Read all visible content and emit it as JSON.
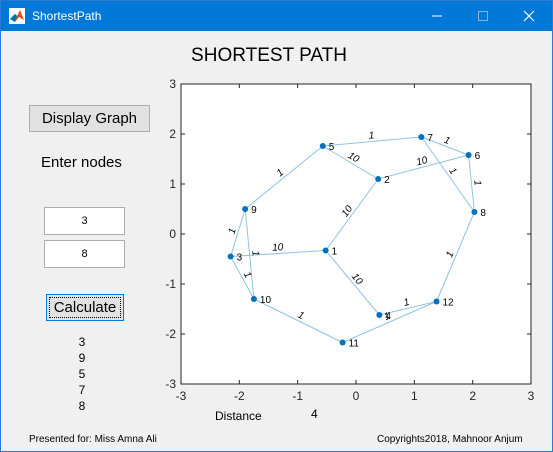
{
  "window": {
    "title": "ShortestPath",
    "controls": {
      "minimize": "—",
      "maximize": "☐",
      "close": "✕"
    }
  },
  "page_title": "SHORTEST PATH",
  "buttons": {
    "display_graph": "Display Graph",
    "calculate": "Calculate"
  },
  "inputs": {
    "label": "Enter nodes",
    "start_node": "3",
    "end_node": "8"
  },
  "path_result": [
    "3",
    "9",
    "5",
    "7",
    "8"
  ],
  "distance": {
    "label": "Distance",
    "value": "4"
  },
  "footer": {
    "left": "Presented for: Miss Amna Ali",
    "right": "Copyrights2018, Mahnoor Anjum"
  },
  "colors": {
    "titlebar": "#0078d7",
    "node": "#0072bd",
    "edge": "#8fc3e3",
    "background": "#f0f0f0"
  },
  "chart_data": {
    "type": "scatter",
    "xlim": [
      -3,
      3
    ],
    "ylim": [
      -3,
      3
    ],
    "xticks": [
      "-3",
      "-2",
      "-1",
      "0",
      "1",
      "2",
      "3"
    ],
    "yticks": [
      "3",
      "2",
      "1",
      "0",
      "-1",
      "-2",
      "-3"
    ],
    "grid": false,
    "nodes": [
      {
        "id": "1",
        "x": -0.52,
        "y": -0.33
      },
      {
        "id": "2",
        "x": 0.38,
        "y": 1.1
      },
      {
        "id": "3",
        "x": -2.15,
        "y": -0.45
      },
      {
        "id": "4",
        "x": 0.4,
        "y": -1.62
      },
      {
        "id": "5",
        "x": -0.57,
        "y": 1.76
      },
      {
        "id": "6",
        "x": 1.93,
        "y": 1.58
      },
      {
        "id": "7",
        "x": 1.12,
        "y": 1.94
      },
      {
        "id": "8",
        "x": 2.03,
        "y": 0.44
      },
      {
        "id": "9",
        "x": -1.9,
        "y": 0.5
      },
      {
        "id": "10",
        "x": -1.75,
        "y": -1.3
      },
      {
        "id": "11",
        "x": -0.23,
        "y": -2.17
      },
      {
        "id": "12",
        "x": 1.38,
        "y": -1.35
      }
    ],
    "edges": [
      {
        "from": "5",
        "to": "7",
        "weight": "1"
      },
      {
        "from": "7",
        "to": "6",
        "weight": "1"
      },
      {
        "from": "5",
        "to": "2",
        "weight": "10"
      },
      {
        "from": "2",
        "to": "6",
        "weight": "10"
      },
      {
        "from": "7",
        "to": "8",
        "weight": "1"
      },
      {
        "from": "6",
        "to": "8",
        "weight": "1"
      },
      {
        "from": "9",
        "to": "5",
        "weight": "1"
      },
      {
        "from": "2",
        "to": "1",
        "weight": "10"
      },
      {
        "from": "9",
        "to": "3",
        "weight": "1"
      },
      {
        "from": "3",
        "to": "1",
        "weight": "10"
      },
      {
        "from": "9",
        "to": "10",
        "weight": "1"
      },
      {
        "from": "3",
        "to": "10",
        "weight": "1"
      },
      {
        "from": "1",
        "to": "4",
        "weight": "10"
      },
      {
        "from": "8",
        "to": "12",
        "weight": "1"
      },
      {
        "from": "4",
        "to": "12",
        "weight": "1"
      },
      {
        "from": "10",
        "to": "11",
        "weight": "1"
      },
      {
        "from": "11",
        "to": "12",
        "weight": "1"
      }
    ]
  }
}
